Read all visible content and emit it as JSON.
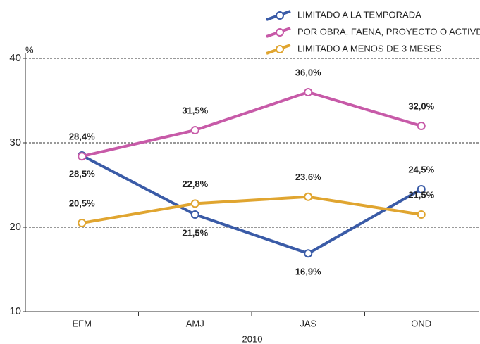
{
  "chart_data": {
    "type": "line",
    "y_unit": "%",
    "x_label": "2010",
    "categories": [
      "EFM",
      "AMJ",
      "JAS",
      "OND"
    ],
    "series": [
      {
        "name": "LIMITADO A LA TEMPORADA",
        "color": "#3a5ba7",
        "values": [
          28.5,
          21.5,
          16.9,
          24.5
        ],
        "value_labels": [
          "28,5%",
          "21,5%",
          "16,9%",
          "24,5%"
        ]
      },
      {
        "name": "POR OBRA, FAENA, PROYECTO O ACTIVDAD",
        "color": "#c75aa8",
        "values": [
          28.4,
          31.5,
          36.0,
          32.0
        ],
        "value_labels": [
          "28,4%",
          "31,5%",
          "36,0%",
          "32,0%"
        ]
      },
      {
        "name": "LIMITADO A MENOS DE 3 MESES",
        "color": "#e0a530",
        "values": [
          20.5,
          22.8,
          23.6,
          21.5
        ],
        "value_labels": [
          "20,5%",
          "22,8%",
          "23,6%",
          "21,5%"
        ]
      }
    ],
    "ylim": [
      10,
      40
    ],
    "yticks": [
      10,
      20,
      30,
      40
    ],
    "grid": true
  }
}
